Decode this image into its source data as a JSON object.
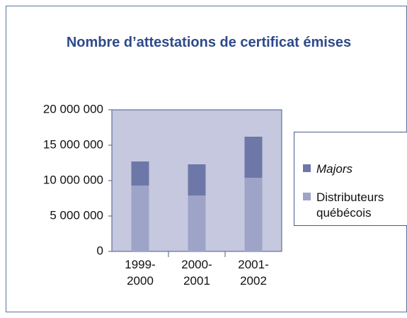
{
  "chart_data": {
    "type": "bar",
    "stacked": true,
    "title": "Nombre d’attestations de certificat émises",
    "categories": [
      "1999-2000",
      "2000-2001",
      "2001-2002"
    ],
    "series": [
      {
        "name": "Distributeurs québécois",
        "color": "#9ea3c8",
        "values": [
          9300000,
          7900000,
          10400000
        ]
      },
      {
        "name": "Majors",
        "color": "#6d78a8",
        "values": [
          3400000,
          4400000,
          5800000
        ]
      }
    ],
    "ylim": [
      0,
      20000000
    ],
    "yticks": [
      0,
      {
        "value": 5000000,
        "label": "5 000 000"
      },
      {
        "value": 10000000,
        "label": "10 000 000"
      },
      {
        "value": 15000000,
        "label": "15 000 000"
      },
      {
        "value": 20000000,
        "label": "20 000 000"
      }
    ],
    "legend": "right"
  }
}
